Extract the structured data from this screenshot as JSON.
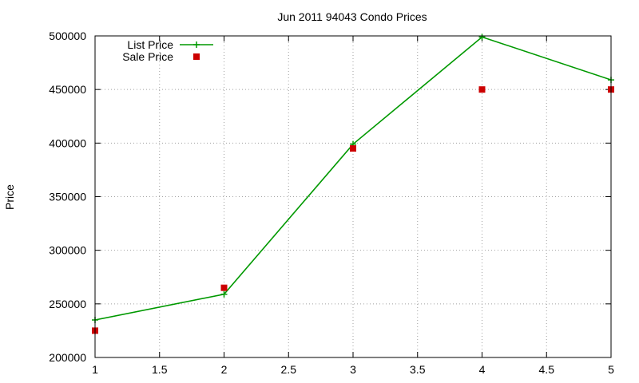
{
  "chart_data": {
    "type": "line",
    "title": "Jun 2011 94043 Condo Prices",
    "xlabel": "",
    "ylabel": "Price",
    "xlim": [
      1,
      5
    ],
    "ylim": [
      200000,
      500000
    ],
    "x_ticks": [
      "1",
      "1.5",
      "2",
      "2.5",
      "3",
      "3.5",
      "4",
      "4.5",
      "5"
    ],
    "y_ticks": [
      "200000",
      "250000",
      "300000",
      "350000",
      "400000",
      "450000",
      "500000"
    ],
    "grid": true,
    "legend_position": "top-left",
    "series": [
      {
        "name": "List Price",
        "style": "linespoints",
        "marker": "plus",
        "color": "#009900",
        "x": [
          1,
          2,
          3,
          4,
          5
        ],
        "values": [
          235000,
          259000,
          399000,
          499000,
          459000
        ]
      },
      {
        "name": "Sale Price",
        "style": "points",
        "marker": "square",
        "color": "#cc0000",
        "x": [
          1,
          2,
          3,
          4,
          5
        ],
        "values": [
          225000,
          265000,
          395000,
          450000,
          450000
        ]
      }
    ]
  }
}
